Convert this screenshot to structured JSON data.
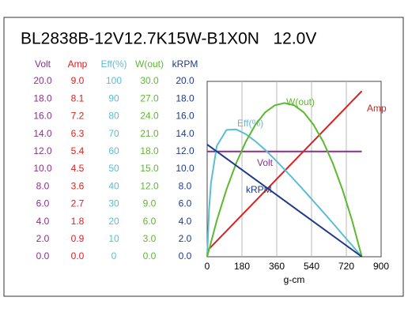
{
  "chart_data": {
    "type": "line",
    "title": "BL2838B-12V12.7K15W-B1X0N   12.0V",
    "x_label": "g-cm",
    "xlim": [
      0,
      900
    ],
    "xticks": [
      0,
      180,
      360,
      540,
      720,
      900
    ],
    "grid": true,
    "series": [
      {
        "name": "Volt",
        "color": "#8b2f8b",
        "x": [
          0,
          800
        ],
        "values": [
          12.0,
          12.0
        ],
        "ylim": [
          0,
          20
        ],
        "yticks": [
          {
            "value": 0,
            "label": "0.0"
          },
          {
            "value": 2,
            "label": "2.0"
          },
          {
            "value": 4,
            "label": "4.0"
          },
          {
            "value": 6,
            "label": "6.0"
          },
          {
            "value": 8,
            "label": "8.0"
          },
          {
            "value": 10,
            "label": "10.0"
          },
          {
            "value": 12,
            "label": "12.0"
          },
          {
            "value": 14,
            "label": "14.0"
          },
          {
            "value": 16,
            "label": "16.0"
          },
          {
            "value": 18,
            "label": "18.0"
          },
          {
            "value": 20,
            "label": "20.0"
          }
        ]
      },
      {
        "name": "Amp",
        "color": "#d62222",
        "x": [
          0,
          800
        ],
        "values": [
          0.3,
          8.5
        ],
        "ylim": [
          0,
          9
        ],
        "yticks": [
          {
            "value": 0,
            "label": "0.0"
          },
          {
            "value": 0.9,
            "label": "0.9"
          },
          {
            "value": 1.8,
            "label": "1.8"
          },
          {
            "value": 2.7,
            "label": "2.7"
          },
          {
            "value": 3.6,
            "label": "3.6"
          },
          {
            "value": 4.5,
            "label": "4.5"
          },
          {
            "value": 5.4,
            "label": "5.4"
          },
          {
            "value": 6.3,
            "label": "6.3"
          },
          {
            "value": 7.2,
            "label": "7.2"
          },
          {
            "value": 8.1,
            "label": "8.1"
          },
          {
            "value": 9,
            "label": "9.0"
          }
        ]
      },
      {
        "name": "Eff(%)",
        "color": "#5bbdd2",
        "x": [
          0,
          10,
          20,
          50,
          100,
          150,
          200,
          250,
          300,
          350,
          400,
          450,
          500,
          550,
          600,
          650,
          700,
          750,
          800
        ],
        "values": [
          0,
          26.9,
          42.3,
          63.2,
          72.3,
          72.6,
          69.9,
          65.8,
          61.0,
          55.5,
          49.8,
          43.9,
          37.9,
          31.7,
          25.5,
          19.2,
          12.8,
          6.5,
          0
        ],
        "ylim": [
          0,
          100
        ],
        "yticks": [
          0,
          10,
          20,
          30,
          40,
          50,
          60,
          70,
          80,
          90,
          100
        ]
      },
      {
        "name": "W(out)",
        "color": "#5cb82e",
        "x": [
          0,
          50,
          100,
          150,
          200,
          250,
          300,
          350,
          400,
          450,
          500,
          550,
          600,
          650,
          700,
          750,
          800
        ],
        "values": [
          0,
          6.2,
          11.5,
          16.0,
          19.7,
          22.6,
          24.7,
          25.9,
          26.3,
          25.9,
          24.7,
          22.6,
          19.7,
          16.0,
          11.5,
          6.2,
          0
        ],
        "ylim": [
          0,
          30
        ],
        "yticks": [
          {
            "value": 0,
            "label": "0.0"
          },
          {
            "value": 3,
            "label": "3.0"
          },
          {
            "value": 6,
            "label": "6.0"
          },
          {
            "value": 9,
            "label": "9.0"
          },
          {
            "value": 12,
            "label": "12.0"
          },
          {
            "value": 15,
            "label": "15.0"
          },
          {
            "value": 18,
            "label": "18.0"
          },
          {
            "value": 21,
            "label": "21.0"
          },
          {
            "value": 24,
            "label": "24.0"
          },
          {
            "value": 27,
            "label": "27.0"
          },
          {
            "value": 30,
            "label": "30.0"
          }
        ]
      },
      {
        "name": "kRPM",
        "color": "#1f3a8a",
        "x": [
          0,
          800
        ],
        "values": [
          12.8,
          0
        ],
        "ylim": [
          0,
          20
        ],
        "yticks": [
          {
            "value": 0,
            "label": "0.0"
          },
          {
            "value": 2,
            "label": "2.0"
          },
          {
            "value": 4,
            "label": "4.0"
          },
          {
            "value": 6,
            "label": "6.0"
          },
          {
            "value": 8,
            "label": "8.0"
          },
          {
            "value": 10,
            "label": "10.0"
          },
          {
            "value": 12,
            "label": "12.0"
          },
          {
            "value": 14,
            "label": "14.0"
          },
          {
            "value": 16,
            "label": "16.0"
          },
          {
            "value": 18,
            "label": "18.0"
          },
          {
            "value": 20,
            "label": "20.0"
          }
        ]
      }
    ]
  }
}
